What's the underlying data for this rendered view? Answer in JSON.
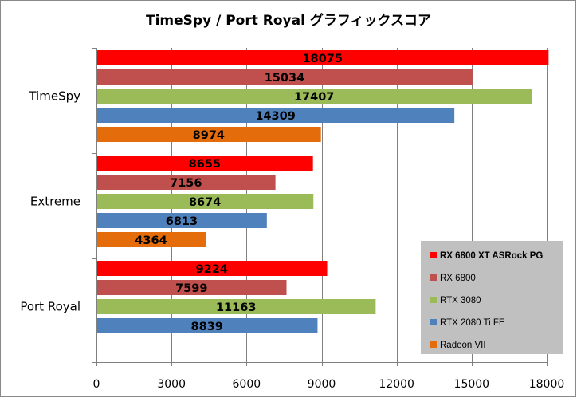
{
  "chart_data": {
    "type": "bar",
    "orientation": "horizontal",
    "title": "TimeSpy / Port Royal グラフィックスコア",
    "xlabel": "",
    "ylabel": "",
    "categories": [
      "TimeSpy",
      "Extreme",
      "Port Royal"
    ],
    "xlim": [
      0,
      18000
    ],
    "xticks": [
      0,
      3000,
      6000,
      9000,
      12000,
      15000,
      18000
    ],
    "grid": true,
    "legend_position": "bottom-right",
    "series": [
      {
        "name": "RX 6800 XT ASRock PG",
        "color": "#ff0000",
        "values": [
          18075,
          8655,
          9224
        ],
        "bold": true
      },
      {
        "name": "RX 6800",
        "color": "#c0504d",
        "values": [
          15034,
          7156,
          7599
        ],
        "bold": false
      },
      {
        "name": "RTX 3080",
        "color": "#9bbb59",
        "values": [
          17407,
          8674,
          11163
        ],
        "bold": false
      },
      {
        "name": "RTX 2080 Ti FE",
        "color": "#4f81bd",
        "values": [
          14309,
          6813,
          8839
        ],
        "bold": false
      },
      {
        "name": "Radeon VII",
        "color": "#e46c0a",
        "values": [
          8974,
          4364,
          null
        ],
        "bold": false
      }
    ]
  }
}
